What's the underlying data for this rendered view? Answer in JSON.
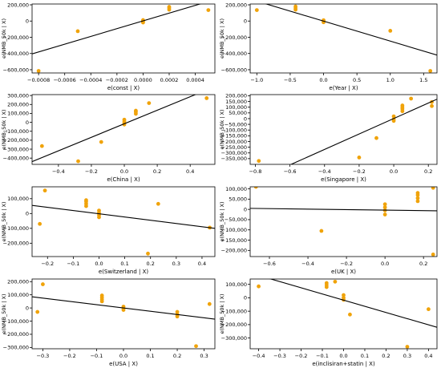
{
  "style": {
    "point_color": "#f0a30a",
    "line_color": "#000000"
  },
  "chart_data": [
    {
      "type": "scatter",
      "xlabel": "e(const | X)",
      "ylabel": "e(NMB_50k | X)",
      "xlim": [
        -0.00085,
        0.00055
      ],
      "ylim": [
        -640000,
        210000
      ],
      "xticks": [
        -0.0008,
        -0.0006,
        -0.0004,
        -0.0002,
        0.0,
        0.0002,
        0.0004
      ],
      "xtick_labels": [
        "−0.0008",
        "−0.0006",
        "−0.0004",
        "−0.0002",
        "0.0000",
        "0.0002",
        "0.0004"
      ],
      "yticks": [
        200000,
        0,
        -200000,
        -400000,
        -600000
      ],
      "ytick_labels": [
        "200,000",
        "0",
        "−200,000",
        "−400,000",
        "−600,000"
      ],
      "points": [
        [
          -0.0008,
          -615000
        ],
        [
          -0.0005,
          -125000
        ],
        [
          0.0,
          5000
        ],
        [
          0.0,
          12000
        ],
        [
          0.0,
          -5000
        ],
        [
          0.0,
          -18000
        ],
        [
          0.0002,
          140000
        ],
        [
          0.0002,
          160000
        ],
        [
          0.0002,
          175000
        ],
        [
          0.0005,
          135000
        ]
      ],
      "line": [
        [
          -0.00085,
          -405000
        ],
        [
          0.00055,
          265000
        ]
      ]
    },
    {
      "type": "scatter",
      "xlabel": "e(Year | X)",
      "ylabel": "e(NMB_50k | X)",
      "xlim": [
        -1.1,
        1.7
      ],
      "ylim": [
        -640000,
        210000
      ],
      "xticks": [
        -1.0,
        -0.5,
        0.0,
        0.5,
        1.0,
        1.5
      ],
      "xtick_labels": [
        "−1.0",
        "−0.5",
        "0.0",
        "0.5",
        "1.0",
        "1.5"
      ],
      "yticks": [
        200000,
        0,
        -200000,
        -400000,
        -600000
      ],
      "ytick_labels": [
        "200,000",
        "0",
        "−200,000",
        "−400,000",
        "−600,000"
      ],
      "points": [
        [
          -1.0,
          135000
        ],
        [
          -0.42,
          140000
        ],
        [
          -0.42,
          160000
        ],
        [
          -0.42,
          180000
        ],
        [
          0.0,
          10000
        ],
        [
          0.0,
          -5000
        ],
        [
          0.0,
          -15000
        ],
        [
          1.0,
          -120000
        ],
        [
          1.6,
          -615000
        ]
      ],
      "line": [
        [
          -1.1,
          270000
        ],
        [
          1.7,
          -420000
        ]
      ]
    },
    {
      "type": "scatter",
      "xlabel": "e(China | X)",
      "ylabel": "e(NMB_50k | X)",
      "xlim": [
        -0.56,
        0.55
      ],
      "ylim": [
        -470000,
        310000
      ],
      "xticks": [
        -0.4,
        -0.2,
        0.0,
        0.2,
        0.4
      ],
      "xtick_labels": [
        "−0.4",
        "−0.2",
        "0.0",
        "0.2",
        "0.4"
      ],
      "yticks": [
        300000,
        200000,
        100000,
        0,
        -100000,
        -200000,
        -300000,
        -400000
      ],
      "ytick_labels": [
        "300,000",
        "200,000",
        "100,000",
        "0",
        "−100,000",
        "−200,000",
        "−300,000",
        "−400,000"
      ],
      "points": [
        [
          -0.5,
          -265000
        ],
        [
          -0.28,
          -435000
        ],
        [
          -0.14,
          -220000
        ],
        [
          0.0,
          30000
        ],
        [
          0.0,
          10000
        ],
        [
          0.0,
          -10000
        ],
        [
          0.0,
          -25000
        ],
        [
          0.07,
          95000
        ],
        [
          0.07,
          115000
        ],
        [
          0.07,
          130000
        ],
        [
          0.15,
          215000
        ],
        [
          0.5,
          270000
        ]
      ],
      "line": [
        [
          -0.56,
          -440000
        ],
        [
          0.55,
          400000
        ]
      ]
    },
    {
      "type": "scatter",
      "xlabel": "e(Singapore | X)",
      "ylabel": "e(NMB_50k | X)",
      "xlim": [
        -0.83,
        0.25
      ],
      "ylim": [
        -400000,
        210000
      ],
      "xticks": [
        -0.8,
        -0.6,
        -0.4,
        -0.2,
        0.0,
        0.2
      ],
      "xtick_labels": [
        "−0.8",
        "−0.6",
        "−0.4",
        "−0.2",
        "0.0",
        "0.2"
      ],
      "yticks": [
        200000,
        150000,
        100000,
        50000,
        0,
        -50000,
        -100000,
        -150000,
        -200000,
        -250000,
        -300000,
        -350000
      ],
      "ytick_labels": [
        "200,000",
        "150,000",
        "100,000",
        "50,000",
        "0",
        "−50,000",
        "−100,000",
        "−150,000",
        "−200,000",
        "−250,000",
        "−300,000",
        "−350,000"
      ],
      "points": [
        [
          -0.78,
          -370000
        ],
        [
          -0.2,
          -340000
        ],
        [
          -0.1,
          -170000
        ],
        [
          0.0,
          20000
        ],
        [
          0.0,
          -5000
        ],
        [
          0.0,
          -20000
        ],
        [
          0.05,
          65000
        ],
        [
          0.05,
          85000
        ],
        [
          0.05,
          100000
        ],
        [
          0.05,
          115000
        ],
        [
          0.1,
          175000
        ],
        [
          0.22,
          145000
        ],
        [
          0.22,
          110000
        ]
      ],
      "line": [
        [
          -0.83,
          -560000
        ],
        [
          0.25,
          170000
        ]
      ]
    },
    {
      "type": "scatter",
      "xlabel": "e(Switzerland | X)",
      "ylabel": "e(NMB_50k | X)",
      "xlim": [
        -0.26,
        0.45
      ],
      "ylim": [
        -290000,
        180000
      ],
      "xticks": [
        -0.2,
        -0.1,
        0.0,
        0.1,
        0.2,
        0.3,
        0.4
      ],
      "xtick_labels": [
        "−0.2",
        "−0.1",
        "0.0",
        "0.1",
        "0.2",
        "0.3",
        "0.4"
      ],
      "yticks": [
        100000,
        0,
        -100000,
        -200000
      ],
      "ytick_labels": [
        "100,000",
        "0",
        "−100,000",
        "−200,000"
      ],
      "points": [
        [
          -0.23,
          -70000
        ],
        [
          -0.21,
          155000
        ],
        [
          -0.05,
          50000
        ],
        [
          -0.05,
          65000
        ],
        [
          -0.05,
          80000
        ],
        [
          -0.05,
          90000
        ],
        [
          0.0,
          20000
        ],
        [
          0.0,
          5000
        ],
        [
          0.0,
          -10000
        ],
        [
          0.0,
          -25000
        ],
        [
          0.19,
          -270000
        ],
        [
          0.23,
          65000
        ],
        [
          0.43,
          -95000
        ]
      ],
      "line": [
        [
          -0.26,
          55000
        ],
        [
          0.45,
          -100000
        ]
      ]
    },
    {
      "type": "scatter",
      "xlabel": "e(UK | X)",
      "ylabel": "e(NMB_50k | X)",
      "xlim": [
        -0.7,
        0.27
      ],
      "ylim": [
        -230000,
        110000
      ],
      "xticks": [
        -0.6,
        -0.4,
        -0.2,
        0.0,
        0.2
      ],
      "xtick_labels": [
        "−0.6",
        "−0.4",
        "−0.2",
        "0.0",
        "0.2"
      ],
      "yticks": [
        100000,
        50000,
        0,
        -50000,
        -100000,
        -150000,
        -200000
      ],
      "ytick_labels": [
        "100,000",
        "50,000",
        "0",
        "−50,000",
        "−100,000",
        "−150,000",
        "−200,000"
      ],
      "points": [
        [
          -0.67,
          110000
        ],
        [
          -0.33,
          -105000
        ],
        [
          0.0,
          25000
        ],
        [
          0.0,
          10000
        ],
        [
          0.0,
          -5000
        ],
        [
          0.0,
          -25000
        ],
        [
          0.17,
          40000
        ],
        [
          0.17,
          55000
        ],
        [
          0.17,
          70000
        ],
        [
          0.17,
          80000
        ],
        [
          0.25,
          105000
        ],
        [
          0.25,
          -220000
        ]
      ],
      "line": [
        [
          -0.7,
          5000
        ],
        [
          0.27,
          -7000
        ]
      ]
    },
    {
      "type": "scatter",
      "xlabel": "e(USA | X)",
      "ylabel": "e(NMB_50k | X)",
      "xlim": [
        -0.34,
        0.34
      ],
      "ylim": [
        -310000,
        220000
      ],
      "xticks": [
        -0.3,
        -0.2,
        -0.1,
        0.0,
        0.1,
        0.2,
        0.3
      ],
      "xtick_labels": [
        "−0.3",
        "−0.2",
        "−0.1",
        "0.0",
        "0.1",
        "0.2",
        "0.3"
      ],
      "yticks": [
        200000,
        100000,
        0,
        -100000,
        -200000,
        -300000
      ],
      "ytick_labels": [
        "200,000",
        "100,000",
        "0",
        "−100,000",
        "−200,000",
        "−300,000"
      ],
      "points": [
        [
          -0.32,
          -30000
        ],
        [
          -0.3,
          180000
        ],
        [
          -0.08,
          50000
        ],
        [
          -0.08,
          65000
        ],
        [
          -0.08,
          80000
        ],
        [
          -0.08,
          95000
        ],
        [
          0.0,
          10000
        ],
        [
          0.0,
          -5000
        ],
        [
          0.0,
          -15000
        ],
        [
          0.2,
          -30000
        ],
        [
          0.2,
          -50000
        ],
        [
          0.2,
          -65000
        ],
        [
          0.27,
          -290000
        ],
        [
          0.32,
          30000
        ]
      ],
      "line": [
        [
          -0.34,
          85000
        ],
        [
          0.34,
          -85000
        ]
      ]
    },
    {
      "type": "scatter",
      "xlabel": "e(inclisiran+statin | X)",
      "ylabel": "e(NMB_50k | X)",
      "xlim": [
        -0.44,
        0.44
      ],
      "ylim": [
        -380000,
        140000
      ],
      "xticks": [
        -0.4,
        -0.3,
        -0.2,
        -0.1,
        0.0,
        0.1,
        0.2,
        0.3,
        0.4
      ],
      "xtick_labels": [
        "−0.4",
        "−0.3",
        "−0.2",
        "−0.1",
        "0.0",
        "0.1",
        "0.2",
        "0.3",
        "0.4"
      ],
      "yticks": [
        100000,
        0,
        -100000,
        -200000,
        -300000
      ],
      "ytick_labels": [
        "100,000",
        "0",
        "−100,000",
        "−200,000",
        "−300,000"
      ],
      "points": [
        [
          -0.4,
          85000
        ],
        [
          -0.08,
          80000
        ],
        [
          -0.08,
          95000
        ],
        [
          -0.08,
          110000
        ],
        [
          -0.04,
          120000
        ],
        [
          0.0,
          20000
        ],
        [
          0.0,
          0
        ],
        [
          0.0,
          -15000
        ],
        [
          0.03,
          -125000
        ],
        [
          0.3,
          -365000
        ],
        [
          0.4,
          -85000
        ]
      ],
      "line": [
        [
          -0.44,
          185000
        ],
        [
          0.44,
          -220000
        ]
      ]
    }
  ]
}
